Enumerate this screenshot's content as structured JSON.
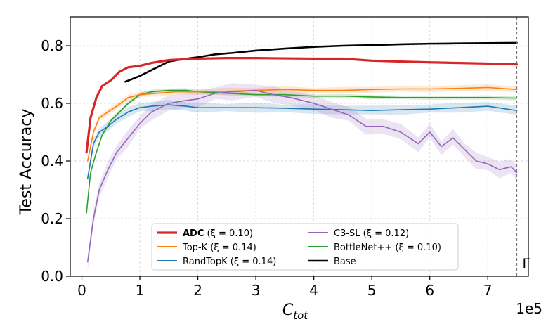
{
  "chart_data": {
    "type": "line",
    "xlabel": "C",
    "xlabel_sub": "tot",
    "ylabel": "Test Accuracy",
    "x_multiplier_label": "1e5",
    "xlim": [
      -0.2,
      7.7
    ],
    "ylim": [
      0.0,
      0.9
    ],
    "x_ticks": [
      0,
      1,
      2,
      3,
      4,
      5,
      6,
      7
    ],
    "y_ticks": [
      0.0,
      0.2,
      0.4,
      0.6,
      0.8
    ],
    "x_tick_labels": [
      "0",
      "1",
      "2",
      "3",
      "4",
      "5",
      "6",
      "7"
    ],
    "y_tick_labels": [
      "0.0",
      "0.2",
      "0.4",
      "0.6",
      "0.8"
    ],
    "grid": true,
    "legend_position": "bottom-center",
    "budget_line": {
      "x": 7.5,
      "label": "Γ",
      "color": "#777777"
    },
    "series": [
      {
        "name": "ADC",
        "xi": "(ξ = 0.10)",
        "color": "#d62728",
        "width": 3.2,
        "bold_name": true,
        "x": [
          0.08,
          0.15,
          0.25,
          0.35,
          0.5,
          0.65,
          0.8,
          1.0,
          1.2,
          1.5,
          2.0,
          2.5,
          3.0,
          3.5,
          4.0,
          4.5,
          5.0,
          5.5,
          6.0,
          6.5,
          7.0,
          7.5
        ],
        "y": [
          0.43,
          0.55,
          0.62,
          0.66,
          0.68,
          0.71,
          0.725,
          0.73,
          0.74,
          0.75,
          0.755,
          0.757,
          0.757,
          0.756,
          0.755,
          0.755,
          0.748,
          0.745,
          0.742,
          0.74,
          0.738,
          0.735
        ]
      },
      {
        "name": "Top-K",
        "xi": "(ξ = 0.14)",
        "color": "#ff7f0e",
        "width": 1.6,
        "band": 0.012,
        "x": [
          0.1,
          0.2,
          0.3,
          0.45,
          0.6,
          0.8,
          1.0,
          1.3,
          1.6,
          2.0,
          2.5,
          3.0,
          3.5,
          4.0,
          4.5,
          5.0,
          5.5,
          6.0,
          6.5,
          7.0,
          7.5
        ],
        "y": [
          0.4,
          0.5,
          0.55,
          0.57,
          0.59,
          0.62,
          0.63,
          0.635,
          0.64,
          0.64,
          0.642,
          0.645,
          0.648,
          0.645,
          0.645,
          0.648,
          0.65,
          0.65,
          0.652,
          0.655,
          0.648
        ]
      },
      {
        "name": "RandTopK",
        "xi": "(ξ = 0.14)",
        "color": "#1f77b4",
        "width": 1.6,
        "band": 0.018,
        "x": [
          0.1,
          0.2,
          0.3,
          0.45,
          0.6,
          0.8,
          1.0,
          1.2,
          1.5,
          1.8,
          2.0,
          2.5,
          3.0,
          3.5,
          4.0,
          4.5,
          5.0,
          5.5,
          6.0,
          6.5,
          7.0,
          7.5
        ],
        "y": [
          0.34,
          0.46,
          0.5,
          0.52,
          0.545,
          0.57,
          0.585,
          0.59,
          0.595,
          0.59,
          0.585,
          0.585,
          0.585,
          0.583,
          0.58,
          0.578,
          0.575,
          0.578,
          0.58,
          0.585,
          0.59,
          0.575
        ]
      },
      {
        "name": "C3-SL",
        "xi": "(ξ = 0.12)",
        "color": "#9467bd",
        "width": 1.6,
        "band": 0.03,
        "x": [
          0.1,
          0.2,
          0.3,
          0.45,
          0.6,
          0.8,
          1.0,
          1.2,
          1.5,
          1.8,
          2.0,
          2.3,
          2.6,
          3.0,
          3.3,
          3.6,
          4.0,
          4.3,
          4.6,
          4.9,
          5.2,
          5.5,
          5.8,
          6.0,
          6.2,
          6.4,
          6.6,
          6.8,
          7.0,
          7.2,
          7.4,
          7.5
        ],
        "y": [
          0.05,
          0.2,
          0.3,
          0.37,
          0.43,
          0.48,
          0.53,
          0.57,
          0.6,
          0.61,
          0.615,
          0.635,
          0.64,
          0.645,
          0.63,
          0.62,
          0.6,
          0.58,
          0.56,
          0.52,
          0.52,
          0.5,
          0.46,
          0.5,
          0.45,
          0.48,
          0.44,
          0.4,
          0.39,
          0.37,
          0.38,
          0.36
        ]
      },
      {
        "name": "BottleNet++",
        "xi": "(ξ = 0.10)",
        "color": "#2ca02c",
        "width": 1.6,
        "band": 0.008,
        "x": [
          0.08,
          0.15,
          0.25,
          0.35,
          0.5,
          0.65,
          0.8,
          1.0,
          1.2,
          1.5,
          1.8,
          2.0,
          2.5,
          3.0,
          3.5,
          4.0,
          4.5,
          5.0,
          5.5,
          6.0,
          6.5,
          7.0,
          7.5
        ],
        "y": [
          0.22,
          0.36,
          0.43,
          0.49,
          0.54,
          0.57,
          0.6,
          0.63,
          0.64,
          0.645,
          0.645,
          0.64,
          0.635,
          0.63,
          0.63,
          0.625,
          0.625,
          0.622,
          0.62,
          0.62,
          0.62,
          0.62,
          0.618
        ]
      },
      {
        "name": "Base",
        "xi": "",
        "color": "#000000",
        "width": 2.6,
        "x": [
          0.75,
          1.0,
          1.2,
          1.5,
          1.8,
          2.0,
          2.3,
          2.6,
          3.0,
          3.5,
          4.0,
          4.5,
          5.0,
          5.5,
          6.0,
          6.5,
          7.0,
          7.5
        ],
        "y": [
          0.675,
          0.695,
          0.715,
          0.745,
          0.755,
          0.76,
          0.77,
          0.775,
          0.783,
          0.79,
          0.796,
          0.8,
          0.802,
          0.805,
          0.807,
          0.808,
          0.809,
          0.81
        ]
      }
    ],
    "legend_layout": [
      [
        0,
        3
      ],
      [
        1,
        4
      ],
      [
        2,
        5
      ]
    ]
  }
}
